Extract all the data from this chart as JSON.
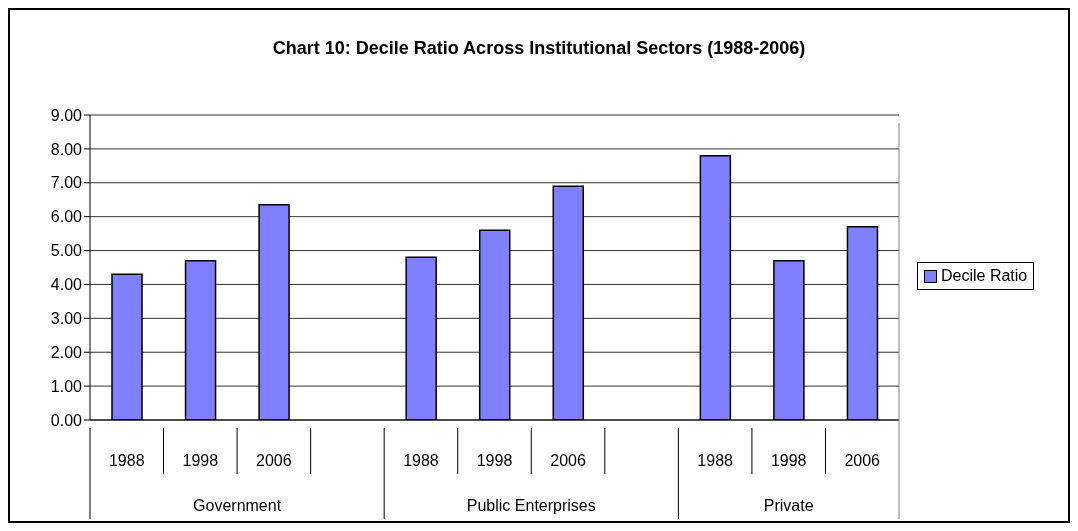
{
  "chart_data": {
    "type": "bar",
    "title": "Chart 10: Decile Ratio Across Institutional Sectors (1988-2006)",
    "categories": [
      "1988",
      "1998",
      "2006",
      null,
      "1988",
      "1998",
      "2006",
      null,
      "1988",
      "1998",
      "2006"
    ],
    "series": [
      {
        "name": "Decile Ratio",
        "color": "#8080ff",
        "values": [
          4.3,
          4.7,
          6.35,
          null,
          4.8,
          5.6,
          6.9,
          null,
          7.8,
          4.7,
          5.7
        ]
      }
    ],
    "annotations": [
      "Government",
      "Public Enterprises",
      "Private"
    ],
    "ylim": [
      0,
      9
    ],
    "yticks": [
      {
        "value": 0,
        "label": "0.00"
      },
      {
        "value": 1,
        "label": "1.00"
      },
      {
        "value": 2,
        "label": "2.00"
      },
      {
        "value": 3,
        "label": "3.00"
      },
      {
        "value": 4,
        "label": "4.00"
      },
      {
        "value": 5,
        "label": "5.00"
      },
      {
        "value": 6,
        "label": "6.00"
      },
      {
        "value": 7,
        "label": "7.00"
      },
      {
        "value": 8,
        "label": "8.00"
      },
      {
        "value": 9,
        "label": "9.00"
      }
    ],
    "grid": "y",
    "legend": "right"
  }
}
